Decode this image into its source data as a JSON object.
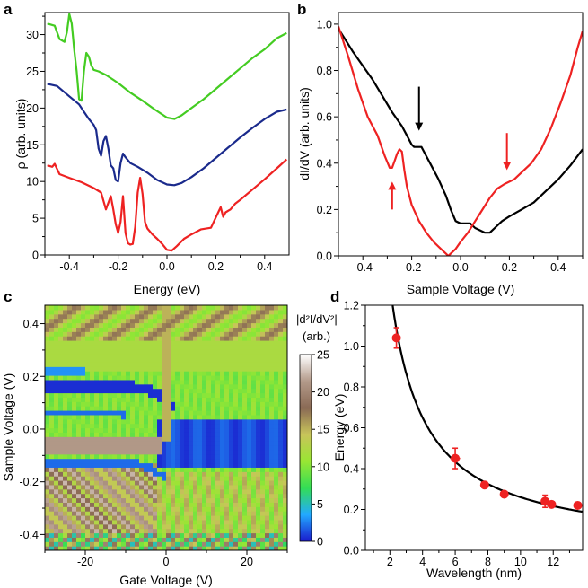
{
  "chart_data": [
    {
      "panel": "a",
      "type": "line",
      "xlabel": "Energy (eV)",
      "ylabel": "ρ (arb. units)",
      "xlim": [
        -0.5,
        0.5
      ],
      "ylim": [
        0,
        33
      ],
      "xticks": [
        "-0.4",
        "-0.2",
        "0.0",
        "0.2",
        "0.4"
      ],
      "yticks": [
        "0",
        "5",
        "10",
        "15",
        "20",
        "25",
        "30"
      ],
      "series": [
        {
          "name": "green",
          "color": "#44cc22",
          "x": [
            -0.49,
            -0.46,
            -0.44,
            -0.42,
            -0.41,
            -0.4,
            -0.39,
            -0.38,
            -0.37,
            -0.36,
            -0.35,
            -0.34,
            -0.33,
            -0.32,
            -0.31,
            -0.3,
            -0.28,
            -0.25,
            -0.2,
            -0.15,
            -0.1,
            -0.05,
            0.0,
            0.03,
            0.06,
            0.1,
            0.15,
            0.2,
            0.25,
            0.3,
            0.35,
            0.4,
            0.45,
            0.49
          ],
          "y": [
            31.5,
            31.2,
            29.4,
            29.0,
            30.3,
            32.8,
            31.5,
            28.0,
            25.0,
            21.2,
            21.0,
            25.0,
            27.5,
            27.0,
            25.8,
            25.2,
            25.0,
            24.5,
            23.4,
            22.1,
            21.0,
            19.8,
            18.7,
            18.5,
            19.0,
            20.0,
            21.2,
            22.6,
            24.0,
            25.4,
            26.8,
            28.0,
            29.5,
            30.2
          ]
        },
        {
          "name": "navy",
          "color": "#1a2a8c",
          "x": [
            -0.49,
            -0.45,
            -0.4,
            -0.36,
            -0.34,
            -0.32,
            -0.3,
            -0.29,
            -0.28,
            -0.27,
            -0.26,
            -0.25,
            -0.24,
            -0.23,
            -0.22,
            -0.21,
            -0.2,
            -0.19,
            -0.18,
            -0.17,
            -0.15,
            -0.12,
            -0.08,
            -0.04,
            0.0,
            0.03,
            0.06,
            0.1,
            0.15,
            0.2,
            0.25,
            0.3,
            0.35,
            0.4,
            0.45,
            0.49
          ],
          "y": [
            23.3,
            23.0,
            21.6,
            20.5,
            19.5,
            18.5,
            17.7,
            17.0,
            14.5,
            13.5,
            15.5,
            16.2,
            14.5,
            12.2,
            11.8,
            10.2,
            10.0,
            12.5,
            13.8,
            13.3,
            12.5,
            12.0,
            11.2,
            10.2,
            9.6,
            9.5,
            9.8,
            10.6,
            11.8,
            13.2,
            14.6,
            16.0,
            17.3,
            18.5,
            19.5,
            19.8
          ]
        },
        {
          "name": "red",
          "color": "#ee2222",
          "x": [
            -0.49,
            -0.47,
            -0.46,
            -0.44,
            -0.4,
            -0.35,
            -0.3,
            -0.27,
            -0.25,
            -0.24,
            -0.23,
            -0.22,
            -0.21,
            -0.2,
            -0.19,
            -0.18,
            -0.17,
            -0.16,
            -0.15,
            -0.14,
            -0.13,
            -0.12,
            -0.11,
            -0.1,
            -0.09,
            -0.08,
            -0.06,
            -0.04,
            -0.02,
            0.0,
            0.02,
            0.04,
            0.07,
            0.1,
            0.14,
            0.18,
            0.21,
            0.22,
            0.23,
            0.24,
            0.26,
            0.28,
            0.3,
            0.35,
            0.4,
            0.45,
            0.49
          ],
          "y": [
            12.2,
            12.0,
            12.4,
            11.0,
            10.5,
            9.9,
            9.1,
            8.5,
            6.2,
            7.1,
            8.0,
            6.2,
            4.2,
            3.0,
            4.5,
            8.0,
            3.0,
            1.6,
            1.4,
            1.5,
            3.8,
            8.5,
            10.5,
            8.3,
            4.5,
            3.6,
            2.8,
            2.2,
            1.5,
            0.7,
            0.6,
            1.2,
            2.2,
            2.8,
            3.5,
            3.7,
            5.8,
            6.5,
            5.2,
            5.8,
            6.2,
            7.0,
            7.5,
            8.9,
            10.3,
            11.8,
            13.0
          ]
        }
      ]
    },
    {
      "panel": "b",
      "type": "line",
      "xlabel": "Sample Voltage (V)",
      "ylabel": "dI/dV (arb. units)",
      "xlim": [
        -0.5,
        0.5
      ],
      "ylim": [
        0,
        1.05
      ],
      "xticks": [
        "-0.4",
        "-0.2",
        "0.0",
        "0.2",
        "0.4"
      ],
      "yticks": [
        "0.0",
        "0.2",
        "0.4",
        "0.6",
        "0.8",
        "1.0"
      ],
      "series": [
        {
          "name": "black",
          "color": "#000000",
          "x": [
            -0.5,
            -0.47,
            -0.44,
            -0.4,
            -0.36,
            -0.32,
            -0.28,
            -0.24,
            -0.22,
            -0.2,
            -0.19,
            -0.18,
            -0.17,
            -0.16,
            -0.14,
            -0.12,
            -0.09,
            -0.06,
            -0.04,
            -0.02,
            0.0,
            0.02,
            0.04,
            0.06,
            0.08,
            0.1,
            0.12,
            0.14,
            0.17,
            0.2,
            0.25,
            0.3,
            0.35,
            0.4,
            0.45,
            0.5
          ],
          "y": [
            0.98,
            0.93,
            0.88,
            0.82,
            0.76,
            0.69,
            0.62,
            0.56,
            0.52,
            0.48,
            0.47,
            0.47,
            0.47,
            0.47,
            0.43,
            0.39,
            0.33,
            0.26,
            0.2,
            0.15,
            0.14,
            0.14,
            0.14,
            0.12,
            0.11,
            0.1,
            0.1,
            0.12,
            0.15,
            0.17,
            0.2,
            0.23,
            0.28,
            0.33,
            0.39,
            0.46
          ]
        },
        {
          "name": "red",
          "color": "#ee2222",
          "x": [
            -0.5,
            -0.46,
            -0.42,
            -0.38,
            -0.34,
            -0.31,
            -0.29,
            -0.28,
            -0.27,
            -0.26,
            -0.25,
            -0.24,
            -0.23,
            -0.22,
            -0.2,
            -0.17,
            -0.14,
            -0.11,
            -0.08,
            -0.06,
            -0.05,
            -0.04,
            -0.02,
            0.0,
            0.03,
            0.06,
            0.09,
            0.12,
            0.15,
            0.18,
            0.2,
            0.22,
            0.25,
            0.29,
            0.33,
            0.37,
            0.41,
            0.45,
            0.48,
            0.5
          ],
          "y": [
            0.99,
            0.86,
            0.72,
            0.6,
            0.52,
            0.43,
            0.38,
            0.38,
            0.41,
            0.44,
            0.46,
            0.45,
            0.37,
            0.3,
            0.22,
            0.15,
            0.1,
            0.06,
            0.03,
            0.01,
            0.0,
            0.01,
            0.03,
            0.06,
            0.1,
            0.15,
            0.2,
            0.25,
            0.29,
            0.31,
            0.32,
            0.33,
            0.36,
            0.4,
            0.46,
            0.55,
            0.66,
            0.78,
            0.9,
            0.97
          ]
        }
      ],
      "annotations": [
        {
          "label": "black-arrow",
          "color": "#000000",
          "x": -0.17,
          "direction": "down"
        },
        {
          "label": "red-arrow-left",
          "color": "#ee2222",
          "x": -0.28,
          "direction": "up"
        },
        {
          "label": "red-arrow-right",
          "color": "#ee2222",
          "x": 0.19,
          "direction": "down"
        }
      ]
    },
    {
      "panel": "c",
      "type": "heatmap",
      "xlabel": "Gate Voltage (V)",
      "ylabel": "Sample Voltage (V)",
      "xlim": [
        -30,
        30
      ],
      "ylim": [
        -0.46,
        0.47
      ],
      "xticks": [
        "-20",
        "0",
        "20"
      ],
      "yticks": [
        "-0.4",
        "-0.2",
        "0.0",
        "0.2",
        "0.4"
      ],
      "colorbar": {
        "title": "|d²I/dV²|",
        "unit": "(arb.)",
        "range": [
          0,
          25
        ],
        "ticks": [
          "0",
          "5",
          "10",
          "15",
          "20",
          "25"
        ],
        "stops": [
          "#1a1acc",
          "#22aaff",
          "#33dd55",
          "#99e633",
          "#c8c45a",
          "#8a6a55",
          "#b39a8a",
          "#ffffff"
        ]
      }
    },
    {
      "panel": "d",
      "type": "scatter",
      "xlabel": "Wavelength (nm)",
      "ylabel": "Energy (eV)",
      "xlim": [
        0.5,
        13.8
      ],
      "ylim": [
        0,
        1.2
      ],
      "xticks": [
        "2",
        "4",
        "6",
        "8",
        "10",
        "12"
      ],
      "yticks": [
        "0.0",
        "0.2",
        "0.4",
        "0.6",
        "0.8",
        "1.0",
        "1.2"
      ],
      "points": [
        {
          "x": 2.4,
          "y": 1.04,
          "yerr": 0.05,
          "xerr": 0
        },
        {
          "x": 6.0,
          "y": 0.45,
          "yerr": 0.05,
          "xerr": 0.3
        },
        {
          "x": 7.8,
          "y": 0.32,
          "yerr": 0,
          "xerr": 0
        },
        {
          "x": 9.0,
          "y": 0.275,
          "yerr": 0,
          "xerr": 0
        },
        {
          "x": 11.5,
          "y": 0.24,
          "yerr": 0.03,
          "xerr": 0
        },
        {
          "x": 11.9,
          "y": 0.225,
          "yerr": 0,
          "xerr": 0
        },
        {
          "x": 13.5,
          "y": 0.22,
          "yerr": 0,
          "xerr": 0
        }
      ],
      "fit": {
        "type": "hyperbola",
        "a": 2.6,
        "color": "#000000"
      },
      "point_color": "#ee2222"
    }
  ],
  "panel_letters": {
    "a": "a",
    "b": "b",
    "c": "c",
    "d": "d"
  }
}
